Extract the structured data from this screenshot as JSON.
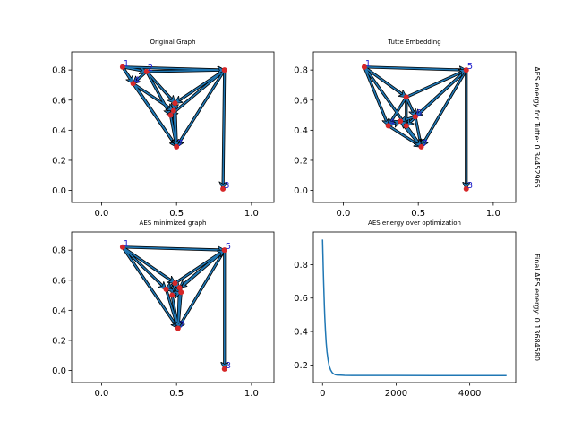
{
  "chart_data": [
    {
      "type": "graph",
      "title": "Original Graph",
      "side_label": "",
      "xlim": [
        -0.2,
        1.15
      ],
      "ylim": [
        -0.08,
        0.92
      ],
      "xticks": [
        0.0,
        0.5,
        1.0
      ],
      "yticks": [
        0.0,
        0.2,
        0.4,
        0.6,
        0.8
      ],
      "xtick_labels": [
        "0.0",
        "0.5",
        "1.0"
      ],
      "ytick_labels": [
        "0.0",
        "0.2",
        "0.4",
        "0.6",
        "0.8"
      ],
      "nodes": [
        {
          "id": "1",
          "x": 0.14,
          "y": 0.82
        },
        {
          "id": "2",
          "x": 0.3,
          "y": 0.79
        },
        {
          "id": "3",
          "x": 0.81,
          "y": 0.01
        },
        {
          "id": "4",
          "x": 0.21,
          "y": 0.71
        },
        {
          "id": "5",
          "x": 0.82,
          "y": 0.8
        },
        {
          "id": "6",
          "x": 0.49,
          "y": 0.58
        },
        {
          "id": "7",
          "x": 0.5,
          "y": 0.29
        },
        {
          "id": "8",
          "x": 0.46,
          "y": 0.5
        },
        {
          "id": "9",
          "x": 0.48,
          "y": 0.53
        }
      ],
      "label_nodes": [
        "1",
        "2",
        "3",
        "4",
        "7"
      ],
      "edges": [
        [
          "1",
          "2"
        ],
        [
          "1",
          "4"
        ],
        [
          "2",
          "4"
        ],
        [
          "1",
          "5"
        ],
        [
          "2",
          "6"
        ],
        [
          "2",
          "8"
        ],
        [
          "4",
          "9"
        ],
        [
          "4",
          "7"
        ],
        [
          "1",
          "7"
        ],
        [
          "5",
          "6"
        ],
        [
          "5",
          "8"
        ],
        [
          "5",
          "7"
        ],
        [
          "5",
          "3"
        ],
        [
          "6",
          "9"
        ],
        [
          "6",
          "7"
        ],
        [
          "8",
          "7"
        ],
        [
          "9",
          "7"
        ],
        [
          "8",
          "9"
        ],
        [
          "2",
          "5"
        ]
      ]
    },
    {
      "type": "graph",
      "title": "Tutte Embedding",
      "side_label": "AES energy for Tutte: 0.34452965",
      "xlim": [
        -0.2,
        1.15
      ],
      "ylim": [
        -0.08,
        0.92
      ],
      "xticks": [
        0.0,
        0.5,
        1.0
      ],
      "yticks": [
        0.0,
        0.2,
        0.4,
        0.6,
        0.8
      ],
      "xtick_labels": [
        "0.0",
        "0.5",
        "1.0"
      ],
      "ytick_labels": [
        "0.0",
        "0.2",
        "0.4",
        "0.6",
        "0.8"
      ],
      "nodes": [
        {
          "id": "1",
          "x": 0.14,
          "y": 0.82
        },
        {
          "id": "2",
          "x": 0.42,
          "y": 0.62
        },
        {
          "id": "3",
          "x": 0.82,
          "y": 0.01
        },
        {
          "id": "4",
          "x": 0.3,
          "y": 0.43
        },
        {
          "id": "5",
          "x": 0.82,
          "y": 0.8
        },
        {
          "id": "6",
          "x": 0.48,
          "y": 0.49
        },
        {
          "id": "7",
          "x": 0.52,
          "y": 0.29
        },
        {
          "id": "8",
          "x": 0.42,
          "y": 0.43
        },
        {
          "id": "9",
          "x": 0.38,
          "y": 0.46
        }
      ],
      "label_nodes": [
        "1",
        "3",
        "4",
        "5",
        "6",
        "7"
      ],
      "edges": [
        [
          "1",
          "2"
        ],
        [
          "1",
          "4"
        ],
        [
          "2",
          "4"
        ],
        [
          "1",
          "5"
        ],
        [
          "2",
          "6"
        ],
        [
          "2",
          "8"
        ],
        [
          "4",
          "9"
        ],
        [
          "4",
          "7"
        ],
        [
          "1",
          "7"
        ],
        [
          "5",
          "6"
        ],
        [
          "5",
          "8"
        ],
        [
          "5",
          "7"
        ],
        [
          "5",
          "3"
        ],
        [
          "6",
          "9"
        ],
        [
          "6",
          "7"
        ],
        [
          "8",
          "7"
        ],
        [
          "9",
          "7"
        ],
        [
          "8",
          "9"
        ],
        [
          "2",
          "5"
        ]
      ]
    },
    {
      "type": "graph",
      "title": "AES minimized graph",
      "side_label": "",
      "xlim": [
        -0.2,
        1.15
      ],
      "ylim": [
        -0.08,
        0.92
      ],
      "xticks": [
        0.0,
        0.5,
        1.0
      ],
      "yticks": [
        0.0,
        0.2,
        0.4,
        0.6,
        0.8
      ],
      "xtick_labels": [
        "0.0",
        "0.5",
        "1.0"
      ],
      "ytick_labels": [
        "0.0",
        "0.2",
        "0.4",
        "0.6",
        "0.8"
      ],
      "nodes": [
        {
          "id": "1",
          "x": 0.14,
          "y": 0.82
        },
        {
          "id": "2",
          "x": 0.49,
          "y": 0.58
        },
        {
          "id": "3",
          "x": 0.82,
          "y": 0.01
        },
        {
          "id": "4",
          "x": 0.43,
          "y": 0.54
        },
        {
          "id": "5",
          "x": 0.82,
          "y": 0.8
        },
        {
          "id": "6",
          "x": 0.52,
          "y": 0.55
        },
        {
          "id": "7",
          "x": 0.51,
          "y": 0.28
        },
        {
          "id": "8",
          "x": 0.47,
          "y": 0.5
        },
        {
          "id": "9",
          "x": 0.53,
          "y": 0.52
        }
      ],
      "label_nodes": [
        "1",
        "3",
        "5",
        "7"
      ],
      "edges": [
        [
          "1",
          "2"
        ],
        [
          "1",
          "4"
        ],
        [
          "2",
          "4"
        ],
        [
          "1",
          "5"
        ],
        [
          "2",
          "6"
        ],
        [
          "2",
          "8"
        ],
        [
          "4",
          "9"
        ],
        [
          "4",
          "7"
        ],
        [
          "1",
          "7"
        ],
        [
          "5",
          "6"
        ],
        [
          "5",
          "8"
        ],
        [
          "5",
          "7"
        ],
        [
          "5",
          "3"
        ],
        [
          "6",
          "9"
        ],
        [
          "6",
          "7"
        ],
        [
          "8",
          "7"
        ],
        [
          "9",
          "7"
        ],
        [
          "8",
          "9"
        ],
        [
          "2",
          "5"
        ]
      ]
    },
    {
      "type": "line",
      "title": "AES energy over optimization",
      "side_label": "Final AES energy: 0.13684580",
      "xlim": [
        -250,
        5250
      ],
      "ylim": [
        0.095,
        0.995
      ],
      "xticks": [
        0,
        2000,
        4000
      ],
      "yticks": [
        0.2,
        0.4,
        0.6,
        0.8
      ],
      "xtick_labels": [
        "0",
        "2000",
        "4000"
      ],
      "ytick_labels": [
        "0.2",
        "0.4",
        "0.6",
        "0.8"
      ],
      "series": [
        {
          "x": [
            0,
            10,
            20,
            30,
            40,
            50,
            60,
            80,
            100,
            120,
            150,
            180,
            220,
            260,
            300,
            350,
            400,
            500,
            600,
            800,
            1000,
            1500,
            2000,
            3000,
            4000,
            5000
          ],
          "y": [
            0.95,
            0.86,
            0.77,
            0.69,
            0.62,
            0.55,
            0.49,
            0.4,
            0.33,
            0.28,
            0.23,
            0.195,
            0.17,
            0.155,
            0.147,
            0.142,
            0.14,
            0.139,
            0.138,
            0.1375,
            0.1372,
            0.137,
            0.1369,
            0.13686,
            0.13685,
            0.13685
          ],
          "color": "#1f77b4"
        }
      ]
    }
  ]
}
